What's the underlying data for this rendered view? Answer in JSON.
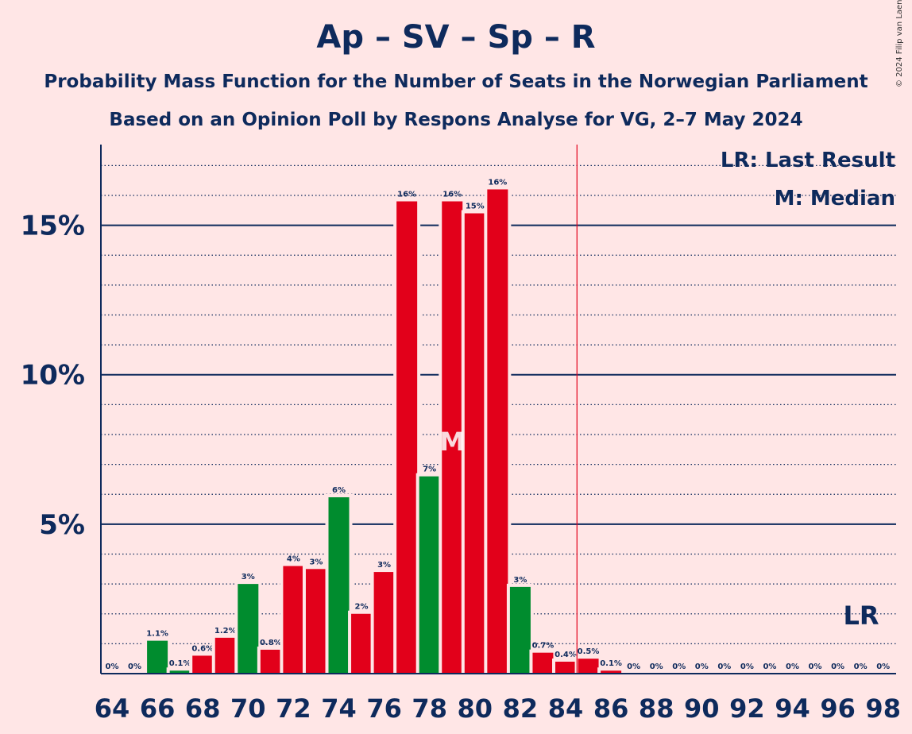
{
  "title": "Ap – SV – Sp – R",
  "subtitle": "Probability Mass Function for the Number of Seats in the Norwegian Parliament",
  "subtitle2": "Based on an Opinion Poll by Respons Analyse for VG, 2–7 May 2024",
  "copyright": "© 2024 Filip van Laenen",
  "colors": {
    "background": "#ffe6e6",
    "text": "#0e2a5c",
    "green": "#008c2e",
    "red": "#e2001a",
    "last_result_line": "#e2001a"
  },
  "chart_data": {
    "type": "bar",
    "x": [
      64,
      65,
      66,
      67,
      68,
      69,
      70,
      71,
      72,
      73,
      74,
      75,
      76,
      77,
      78,
      79,
      80,
      81,
      82,
      83,
      84,
      85,
      86,
      87,
      88,
      89,
      90,
      91,
      92,
      93,
      94,
      95,
      96,
      97,
      98
    ],
    "values": [
      0,
      0,
      1.1,
      0.1,
      0.6,
      1.2,
      3.0,
      0.8,
      3.6,
      3.5,
      5.9,
      2.0,
      3.4,
      15.8,
      6.6,
      15.8,
      15.4,
      16.2,
      2.9,
      0.7,
      0.4,
      0.5,
      0.1,
      0,
      0,
      0,
      0,
      0,
      0,
      0,
      0,
      0,
      0,
      0,
      0
    ],
    "labels": [
      "0%",
      "0%",
      "1.1%",
      "0.1%",
      "0.6%",
      "1.2%",
      "3%",
      "0.8%",
      "4%",
      "3%",
      "6%",
      "2%",
      "3%",
      "16%",
      "7%",
      "16%",
      "15%",
      "16%",
      "3%",
      "0.7%",
      "0.4%",
      "0.5%",
      "0.1%",
      "0%",
      "0%",
      "0%",
      "0%",
      "0%",
      "0%",
      "0%",
      "0%",
      "0%",
      "0%",
      "0%",
      "0%"
    ],
    "bar_colors": [
      "red",
      "red",
      "green",
      "green",
      "red",
      "red",
      "green",
      "red",
      "red",
      "red",
      "green",
      "red",
      "red",
      "red",
      "green",
      "red",
      "red",
      "red",
      "green",
      "red",
      "red",
      "red",
      "red",
      "red",
      "red",
      "red",
      "red",
      "red",
      "red",
      "red",
      "red",
      "red",
      "red",
      "red",
      "red"
    ],
    "x_ticks": [
      "64",
      "66",
      "68",
      "70",
      "72",
      "74",
      "76",
      "78",
      "80",
      "82",
      "84",
      "86",
      "88",
      "90",
      "92",
      "94",
      "96",
      "98"
    ],
    "y_ticks": [
      {
        "value": 5,
        "label": "5%"
      },
      {
        "value": 10,
        "label": "10%"
      },
      {
        "value": 15,
        "label": "15%"
      }
    ],
    "ylim": [
      0,
      17.7
    ],
    "last_result_x": 84.5,
    "median_x": 79,
    "median_marker": "M",
    "lr_marker": "LR",
    "legend": [
      "LR: Last Result",
      "M: Median"
    ],
    "legend_position": "top-right",
    "grid": "major solid, minor dotted"
  }
}
